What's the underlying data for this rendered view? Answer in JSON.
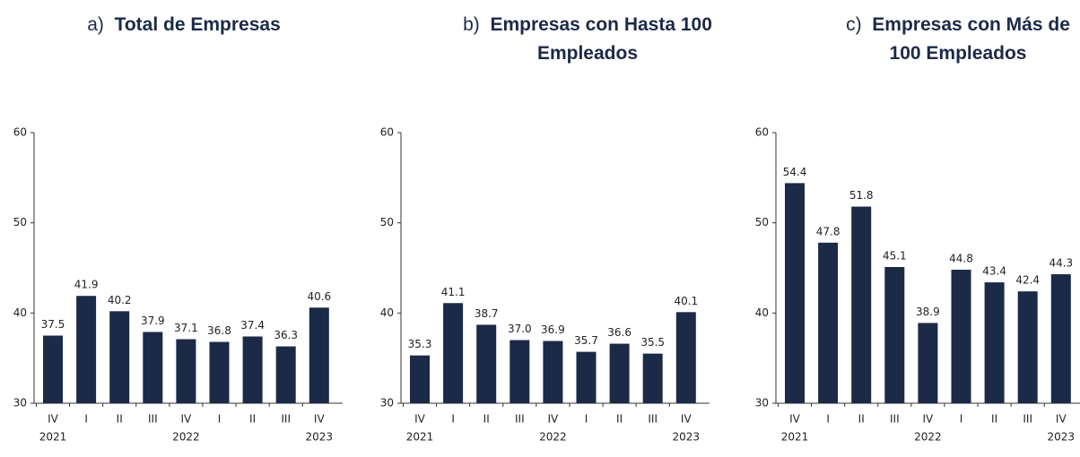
{
  "chart_data": [
    {
      "type": "bar",
      "label": "a)",
      "title_lines": [
        "Total de Empresas"
      ],
      "categories": [
        "IV",
        "I",
        "II",
        "III",
        "IV",
        "I",
        "II",
        "III",
        "IV"
      ],
      "year_labels": [
        "2021",
        null,
        null,
        null,
        "2022",
        null,
        null,
        null,
        "2023"
      ],
      "values": [
        37.5,
        41.9,
        40.2,
        37.9,
        37.1,
        36.8,
        37.4,
        36.3,
        40.6
      ],
      "color": "#1b2a47",
      "ylim": [
        30,
        60
      ],
      "yticks": [
        30,
        40,
        50,
        60
      ]
    },
    {
      "type": "bar",
      "label": "b)",
      "title_lines": [
        "Empresas con Hasta 100",
        "Empleados"
      ],
      "categories": [
        "IV",
        "I",
        "II",
        "III",
        "IV",
        "I",
        "II",
        "III",
        "IV"
      ],
      "year_labels": [
        "2021",
        null,
        null,
        null,
        "2022",
        null,
        null,
        null,
        "2023"
      ],
      "values": [
        35.3,
        41.1,
        38.7,
        {
          "value": 37,
          "label": "37.0"
        },
        36.9,
        35.7,
        36.6,
        35.5,
        40.1
      ],
      "color": "#1b2a47",
      "ylim": [
        30,
        60
      ],
      "yticks": [
        30,
        40,
        50,
        60
      ]
    },
    {
      "type": "bar",
      "label": "c)",
      "title_lines": [
        "Empresas con Más de",
        "100 Empleados"
      ],
      "categories": [
        "IV",
        "I",
        "II",
        "III",
        "IV",
        "I",
        "II",
        "III",
        "IV"
      ],
      "year_labels": [
        "2021",
        null,
        null,
        null,
        "2022",
        null,
        null,
        null,
        "2023"
      ],
      "values": [
        54.4,
        47.8,
        51.8,
        45.1,
        38.9,
        44.8,
        43.4,
        42.4,
        44.3
      ],
      "color": "#1b2a47",
      "ylim": [
        30,
        60
      ],
      "yticks": [
        30,
        40,
        50,
        60
      ]
    }
  ]
}
